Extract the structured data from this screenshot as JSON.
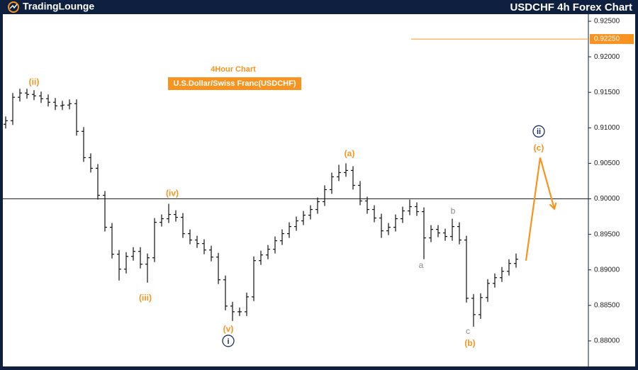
{
  "header": {
    "logo": "TradingLounge",
    "title": "USDCHF 4h Forex Chart"
  },
  "chart_data": {
    "type": "ohlc",
    "title": "4Hour Chart",
    "subtitle": "U.S.Dollar/Swiss Franc(USDCHF)",
    "color": "#111111",
    "accent": "#f7931e",
    "ylim": [
      0.8766,
      0.926
    ],
    "yticks": [
      {
        "value": 0.925,
        "label": "0.92500"
      },
      {
        "value": 0.92,
        "label": "0.92000"
      },
      {
        "value": 0.915,
        "label": "0.91500"
      },
      {
        "value": 0.91,
        "label": "0.91000"
      },
      {
        "value": 0.905,
        "label": "0.90500"
      },
      {
        "value": 0.9,
        "label": "0.90000"
      },
      {
        "value": 0.895,
        "label": "0.89500"
      },
      {
        "value": 0.89,
        "label": "0.89000"
      },
      {
        "value": 0.885,
        "label": "0.88500"
      },
      {
        "value": 0.88,
        "label": "0.88000"
      }
    ],
    "open": [
      0.9105,
      0.911,
      0.9143,
      0.9149,
      0.9147,
      0.9145,
      0.9141,
      0.9136,
      0.9131,
      0.9132,
      0.9134,
      0.9095,
      0.9058,
      0.9043,
      0.9005,
      0.896,
      0.8922,
      0.8901,
      0.8919,
      0.8926,
      0.8908,
      0.8917,
      0.8967,
      0.8972,
      0.8978,
      0.8974,
      0.8951,
      0.8942,
      0.8937,
      0.8928,
      0.8918,
      0.8886,
      0.8849,
      0.8841,
      0.8841,
      0.8862,
      0.8913,
      0.8921,
      0.8929,
      0.8941,
      0.8951,
      0.8961,
      0.8969,
      0.8977,
      0.8985,
      0.8996,
      0.9013,
      0.9031,
      0.9037,
      0.904,
      0.9019,
      0.8997,
      0.8985,
      0.8973,
      0.8955,
      0.896,
      0.8972,
      0.8983,
      0.8989,
      0.8982,
      0.8945,
      0.8957,
      0.8952,
      0.8947,
      0.8961,
      0.8942,
      0.886,
      0.8837,
      0.8861,
      0.8881,
      0.8889,
      0.8898,
      0.8909
    ],
    "high": [
      0.9116,
      0.9149,
      0.9155,
      0.9155,
      0.9153,
      0.9151,
      0.9147,
      0.9142,
      0.9138,
      0.914,
      0.914,
      0.9101,
      0.9064,
      0.9049,
      0.9011,
      0.8966,
      0.8928,
      0.8925,
      0.8932,
      0.8932,
      0.8923,
      0.8973,
      0.8978,
      0.8993,
      0.8984,
      0.898,
      0.8957,
      0.8948,
      0.8943,
      0.8934,
      0.8924,
      0.8892,
      0.8855,
      0.8847,
      0.8868,
      0.8919,
      0.8927,
      0.8935,
      0.8947,
      0.8957,
      0.8967,
      0.8975,
      0.8983,
      0.8991,
      0.9002,
      0.9019,
      0.9037,
      0.9048,
      0.905,
      0.9046,
      0.9025,
      0.9003,
      0.8991,
      0.8979,
      0.8966,
      0.8978,
      0.8989,
      0.8999,
      0.8995,
      0.8988,
      0.8963,
      0.8963,
      0.8958,
      0.8972,
      0.8967,
      0.8948,
      0.8866,
      0.8867,
      0.8887,
      0.8895,
      0.8904,
      0.8915,
      0.8923
    ],
    "low": [
      0.9099,
      0.9104,
      0.9137,
      0.9141,
      0.9139,
      0.9135,
      0.913,
      0.9125,
      0.9125,
      0.9126,
      0.9089,
      0.9052,
      0.9037,
      0.8999,
      0.8954,
      0.8916,
      0.8885,
      0.8895,
      0.8913,
      0.8902,
      0.8882,
      0.8911,
      0.8961,
      0.8966,
      0.8968,
      0.8945,
      0.8936,
      0.8931,
      0.8922,
      0.8912,
      0.888,
      0.8843,
      0.8828,
      0.8835,
      0.8835,
      0.8856,
      0.8907,
      0.8915,
      0.8923,
      0.8935,
      0.8945,
      0.8955,
      0.8963,
      0.8971,
      0.8979,
      0.899,
      0.9007,
      0.9025,
      0.9031,
      0.9013,
      0.8991,
      0.8979,
      0.8967,
      0.8945,
      0.8949,
      0.8954,
      0.8966,
      0.8977,
      0.8976,
      0.8915,
      0.8939,
      0.8946,
      0.8941,
      0.8941,
      0.8936,
      0.8854,
      0.882,
      0.8831,
      0.8855,
      0.8875,
      0.8883,
      0.8892,
      0.8903
    ],
    "close": [
      0.911,
      0.9143,
      0.9149,
      0.9147,
      0.9145,
      0.9141,
      0.9136,
      0.9131,
      0.9132,
      0.9134,
      0.9095,
      0.9058,
      0.9043,
      0.9005,
      0.896,
      0.8922,
      0.8901,
      0.8919,
      0.8926,
      0.8908,
      0.8917,
      0.8967,
      0.8972,
      0.8978,
      0.8974,
      0.8951,
      0.8942,
      0.8937,
      0.8928,
      0.8918,
      0.8886,
      0.8849,
      0.8841,
      0.8841,
      0.8862,
      0.8913,
      0.8921,
      0.8929,
      0.8941,
      0.8951,
      0.8961,
      0.8969,
      0.8977,
      0.8985,
      0.8996,
      0.9013,
      0.9031,
      0.9037,
      0.904,
      0.9019,
      0.8997,
      0.8985,
      0.8973,
      0.8955,
      0.896,
      0.8972,
      0.8983,
      0.8989,
      0.8982,
      0.8945,
      0.8957,
      0.8952,
      0.8947,
      0.8961,
      0.8942,
      0.886,
      0.8837,
      0.8861,
      0.8881,
      0.8889,
      0.8898,
      0.8909,
      0.8915
    ],
    "hline": {
      "value": 0.9,
      "color": "#222222"
    },
    "level": {
      "value": 0.9225,
      "label": "0.92250",
      "from": 57.2,
      "color": "#f7931e"
    },
    "projection": {
      "x": [
        73.4,
        75.4,
        77.4
      ],
      "y": [
        0.8913,
        0.9058,
        0.8986
      ],
      "color": "#f7931e"
    },
    "annotations": [
      {
        "text": "(ii)",
        "x": 4.0,
        "y": 0.9165,
        "color": "#f7931e",
        "circled": false
      },
      {
        "text": "(iii)",
        "x": 19.7,
        "y": 0.8861,
        "color": "#f7931e",
        "circled": false
      },
      {
        "text": "(iv)",
        "x": 23.5,
        "y": 0.9008,
        "color": "#f7931e",
        "circled": false
      },
      {
        "text": "(v)",
        "x": 31.4,
        "y": 0.8817,
        "color": "#f7931e",
        "circled": false
      },
      {
        "text": "i",
        "x": 31.4,
        "y": 0.88,
        "color": "#1d2e5a",
        "circled": true
      },
      {
        "text": "(a)",
        "x": 48.5,
        "y": 0.9064,
        "color": "#f7931e",
        "circled": false
      },
      {
        "text": "a",
        "x": 58.6,
        "y": 0.8907,
        "color": "#8a8a8a",
        "circled": false
      },
      {
        "text": "b",
        "x": 63.1,
        "y": 0.8983,
        "color": "#8a8a8a",
        "circled": false
      },
      {
        "text": "c",
        "x": 65.2,
        "y": 0.8814,
        "color": "#8a8a8a",
        "circled": false
      },
      {
        "text": "(b)",
        "x": 65.5,
        "y": 0.8797,
        "color": "#f7931e",
        "circled": false
      },
      {
        "text": "(c)",
        "x": 75.2,
        "y": 0.9072,
        "color": "#f7931e",
        "circled": false
      },
      {
        "text": "ii",
        "x": 75.2,
        "y": 0.9095,
        "color": "#1d2e5a",
        "circled": true
      }
    ]
  }
}
